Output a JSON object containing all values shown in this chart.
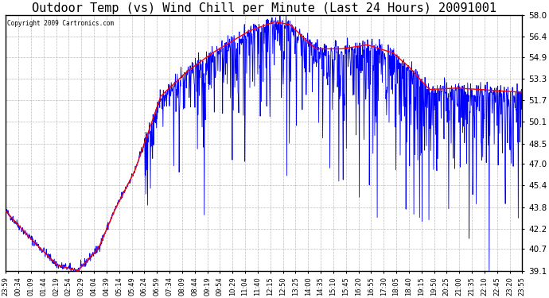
{
  "title": "Outdoor Temp (vs) Wind Chill per Minute (Last 24 Hours) 20091001",
  "copyright_text": "Copyright 2009 Cartronics.com",
  "yticks": [
    39.1,
    40.7,
    42.2,
    43.8,
    45.4,
    47.0,
    48.5,
    50.1,
    51.7,
    53.3,
    54.9,
    56.4,
    58.0
  ],
  "ymin": 39.1,
  "ymax": 58.0,
  "background_color": "#ffffff",
  "plot_bg_color": "#ffffff",
  "grid_color": "#aaaaaa",
  "red_line_color": "#ff0000",
  "blue_line_color": "#0000ff",
  "title_fontsize": 11,
  "n_points": 1440,
  "xtick_labels": [
    "23:59",
    "00:34",
    "01:09",
    "01:44",
    "02:19",
    "02:54",
    "03:29",
    "04:04",
    "04:39",
    "05:14",
    "05:49",
    "06:24",
    "06:59",
    "07:34",
    "08:09",
    "08:44",
    "09:19",
    "09:54",
    "10:29",
    "11:04",
    "11:40",
    "12:15",
    "12:50",
    "13:25",
    "14:00",
    "14:35",
    "15:10",
    "15:45",
    "16:20",
    "16:55",
    "17:30",
    "18:05",
    "18:40",
    "19:15",
    "19:50",
    "20:25",
    "21:00",
    "21:35",
    "22:10",
    "22:45",
    "23:20",
    "23:55"
  ]
}
